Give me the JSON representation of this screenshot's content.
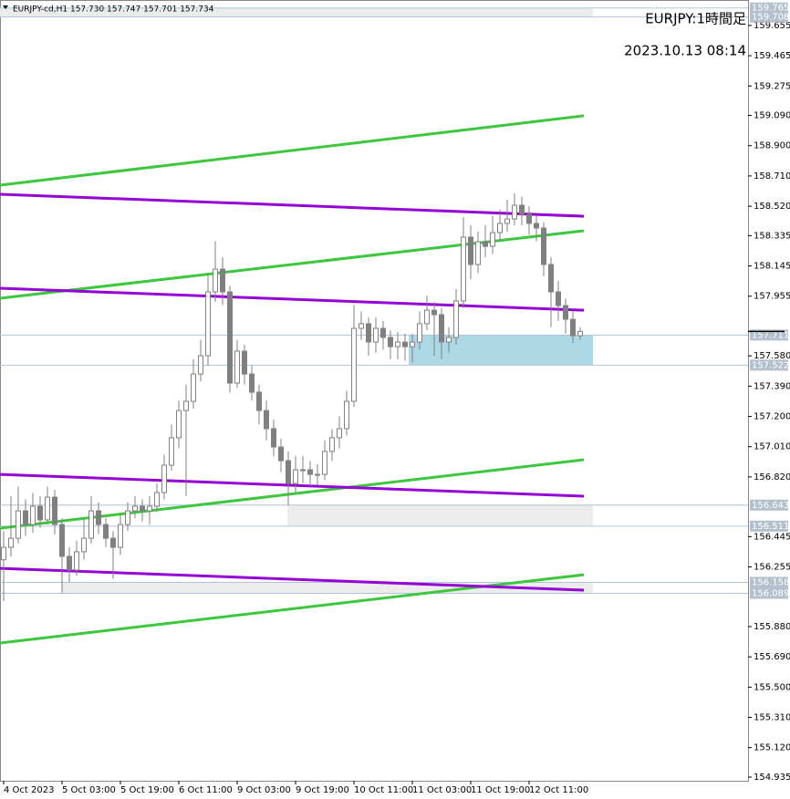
{
  "chart_data": {
    "type": "candlestick",
    "header": "EURJPY-cd,H1  157.730 157.747 157.701 157.734",
    "title": "EURJPY:1時間足",
    "subtitle": "2023.10.13 08:14",
    "candle_color": "#808080",
    "x": [
      0,
      2,
      4,
      6,
      8,
      10,
      12,
      14,
      16,
      18,
      20,
      22,
      24,
      26,
      28,
      30,
      32,
      34,
      36,
      38,
      40,
      42,
      44,
      46,
      48,
      50,
      52,
      54,
      56,
      58,
      60,
      62,
      64,
      66,
      68,
      70,
      72,
      74,
      76,
      78,
      80,
      82,
      84,
      86,
      88,
      90,
      92,
      94,
      96,
      98,
      100,
      102,
      104,
      106,
      108,
      110,
      112,
      114,
      116,
      118,
      120,
      122,
      124,
      126,
      128,
      130,
      132,
      134,
      136,
      138,
      140,
      142,
      144,
      146,
      148,
      150,
      152,
      154,
      156,
      158
    ],
    "open": [
      156.3,
      156.378,
      156.435,
      156.607,
      156.521,
      156.636,
      156.55,
      156.693,
      156.521,
      156.321,
      156.235,
      156.35,
      156.435,
      156.607,
      156.521,
      156.435,
      156.378,
      156.521,
      156.607,
      156.636,
      156.607,
      156.636,
      156.722,
      156.894,
      157.066,
      157.237,
      157.295,
      157.466,
      157.581,
      157.982,
      158.125,
      157.982,
      157.409,
      157.61,
      157.466,
      157.352,
      157.237,
      157.123,
      157.008,
      156.922,
      156.779,
      156.865,
      156.865,
      156.836,
      156.836,
      156.98,
      157.066,
      157.123,
      157.295,
      157.753,
      157.782,
      157.667,
      157.753,
      157.696,
      157.638,
      157.667,
      157.638,
      157.667,
      157.782,
      157.867,
      157.839,
      157.667,
      157.696,
      157.925,
      158.326,
      158.154,
      158.297,
      158.268,
      158.354,
      158.412,
      158.44,
      158.526,
      158.469,
      158.412,
      158.383,
      158.154,
      157.982,
      157.896,
      157.81,
      157.707
    ],
    "high": [
      156.48,
      156.7,
      156.76,
      156.68,
      156.72,
      156.7,
      156.76,
      156.74,
      156.56,
      156.38,
      156.42,
      156.56,
      156.7,
      156.66,
      156.56,
      156.48,
      156.58,
      156.66,
      156.7,
      156.68,
      156.7,
      156.78,
      156.96,
      157.15,
      157.3,
      157.4,
      157.56,
      157.68,
      158.1,
      158.3,
      158.2,
      158.02,
      157.68,
      157.65,
      157.52,
      157.4,
      157.3,
      157.18,
      157.06,
      156.98,
      156.95,
      156.95,
      156.92,
      156.9,
      157.05,
      157.12,
      157.2,
      157.36,
      157.9,
      157.86,
      157.82,
      157.82,
      157.8,
      157.74,
      157.73,
      157.72,
      157.72,
      157.86,
      157.96,
      157.92,
      157.88,
      157.76,
      158.0,
      158.45,
      158.4,
      158.36,
      158.4,
      158.46,
      158.5,
      158.56,
      158.6,
      158.58,
      158.52,
      158.46,
      158.42,
      158.2,
      158.05,
      157.94,
      157.86,
      157.76
    ],
    "low": [
      156.04,
      156.32,
      156.4,
      156.45,
      156.47,
      156.5,
      156.52,
      156.46,
      156.089,
      156.158,
      156.2,
      156.3,
      156.4,
      156.46,
      156.38,
      156.18,
      156.33,
      156.48,
      156.56,
      156.54,
      156.52,
      156.6,
      156.68,
      156.86,
      157.0,
      156.7,
      157.25,
      157.42,
      157.52,
      157.92,
      157.9,
      157.35,
      157.38,
      157.4,
      157.3,
      157.15,
      157.05,
      156.95,
      156.85,
      156.643,
      156.72,
      156.78,
      156.76,
      156.77,
      156.8,
      156.92,
      157.0,
      157.08,
      157.26,
      157.68,
      157.58,
      157.6,
      157.62,
      157.56,
      157.56,
      157.55,
      157.54,
      157.62,
      157.74,
      157.58,
      157.56,
      157.6,
      157.65,
      157.88,
      158.06,
      158.1,
      158.2,
      158.22,
      158.3,
      158.36,
      158.4,
      158.4,
      158.34,
      158.3,
      158.08,
      157.76,
      157.8,
      157.72,
      157.66,
      157.68
    ],
    "close": [
      156.378,
      156.435,
      156.607,
      156.521,
      156.636,
      156.55,
      156.693,
      156.521,
      156.321,
      156.235,
      156.35,
      156.435,
      156.607,
      156.521,
      156.435,
      156.378,
      156.521,
      156.607,
      156.636,
      156.607,
      156.636,
      156.722,
      156.894,
      157.066,
      157.237,
      157.295,
      157.466,
      157.581,
      157.982,
      158.125,
      157.982,
      157.409,
      157.61,
      157.466,
      157.352,
      157.237,
      157.123,
      157.008,
      156.922,
      156.779,
      156.865,
      156.865,
      156.836,
      156.836,
      156.98,
      157.066,
      157.123,
      157.295,
      157.753,
      157.782,
      157.667,
      157.753,
      157.696,
      157.638,
      157.667,
      157.638,
      157.667,
      157.782,
      157.867,
      157.839,
      157.667,
      157.696,
      157.925,
      158.326,
      158.154,
      158.297,
      158.268,
      158.354,
      158.412,
      158.44,
      158.526,
      158.469,
      158.412,
      158.383,
      158.154,
      157.982,
      157.896,
      157.81,
      157.707,
      157.734
    ],
    "trendlines": [
      {
        "color": "#3cc83c",
        "x": [
          -1,
          159
        ],
        "y": [
          158.652,
          159.088
        ]
      },
      {
        "color": "#3cc83c",
        "x": [
          -1,
          159
        ],
        "y": [
          157.942,
          158.366
        ]
      },
      {
        "color": "#3cc83c",
        "x": [
          -1,
          159
        ],
        "y": [
          156.498,
          156.928
        ]
      },
      {
        "color": "#3cc83c",
        "x": [
          -1,
          159
        ],
        "y": [
          155.777,
          156.206
        ]
      },
      {
        "color": "#9400d3",
        "x": [
          -1,
          159
        ],
        "y": [
          158.595,
          158.457
        ]
      },
      {
        "color": "#9400d3",
        "x": [
          -1,
          159
        ],
        "y": [
          158.005,
          157.867
        ]
      },
      {
        "color": "#9400d3",
        "x": [
          -1,
          159
        ],
        "y": [
          156.836,
          156.699
        ]
      },
      {
        "color": "#9400d3",
        "x": [
          -1,
          159
        ],
        "y": [
          156.246,
          156.109
        ]
      }
    ],
    "zones": [
      {
        "top": 159.765,
        "bottom": 159.708,
        "x_start": -1,
        "x_end": 161.5,
        "color": "#ececec"
      },
      {
        "top": 157.711,
        "bottom": 157.522,
        "x_start": 111,
        "x_end": 161.5,
        "color": "#add8e6"
      },
      {
        "top": 156.643,
        "bottom": 156.511,
        "x_start": 77.75,
        "x_end": 161.5,
        "color": "#ececec"
      },
      {
        "top": 156.158,
        "bottom": 156.089,
        "x_start": 16,
        "x_end": 161.5,
        "color": "#ececec"
      }
    ],
    "xlim": [
      -1,
      204
    ],
    "ylim": [
      154.912,
      159.815
    ],
    "xticks": [
      {
        "value": 0,
        "label": "4 Oct 2023"
      },
      {
        "value": 16,
        "label": "5 Oct 03:00"
      },
      {
        "value": 32,
        "label": "5 Oct 19:00"
      },
      {
        "value": 48,
        "label": "6 Oct 11:00"
      },
      {
        "value": 64,
        "label": "9 Oct 03:00"
      },
      {
        "value": 80,
        "label": "9 Oct 19:00"
      },
      {
        "value": 96,
        "label": "10 Oct 11:00"
      },
      {
        "value": 112,
        "label": "11 Oct 03:00"
      },
      {
        "value": 128,
        "label": "11 Oct 19:00"
      },
      {
        "value": 144,
        "label": "12 Oct 11:00"
      }
    ],
    "yticks": [
      159.655,
      159.465,
      159.275,
      {
        "value": 159.09,
        "label": "159.090"
      },
      {
        "value": 158.9,
        "label": "158.900"
      },
      {
        "value": 158.71,
        "label": "158.710"
      },
      {
        "value": 158.52,
        "label": "158.520"
      },
      158.335,
      158.145,
      157.955,
      {
        "value": 157.58,
        "label": "157.580"
      },
      {
        "value": 157.39,
        "label": "157.390"
      },
      {
        "value": 157.2,
        "label": "157.200"
      },
      {
        "value": 157.01,
        "label": "157.010"
      },
      {
        "value": 156.82,
        "label": "156.820"
      },
      156.445,
      156.255,
      {
        "value": 155.88,
        "label": "155.880"
      },
      {
        "value": 155.69,
        "label": "155.690"
      },
      {
        "value": 155.5,
        "label": "155.500"
      },
      {
        "value": 155.31,
        "label": "155.310"
      },
      {
        "value": 155.12,
        "label": "155.120"
      },
      154.935
    ]
  }
}
